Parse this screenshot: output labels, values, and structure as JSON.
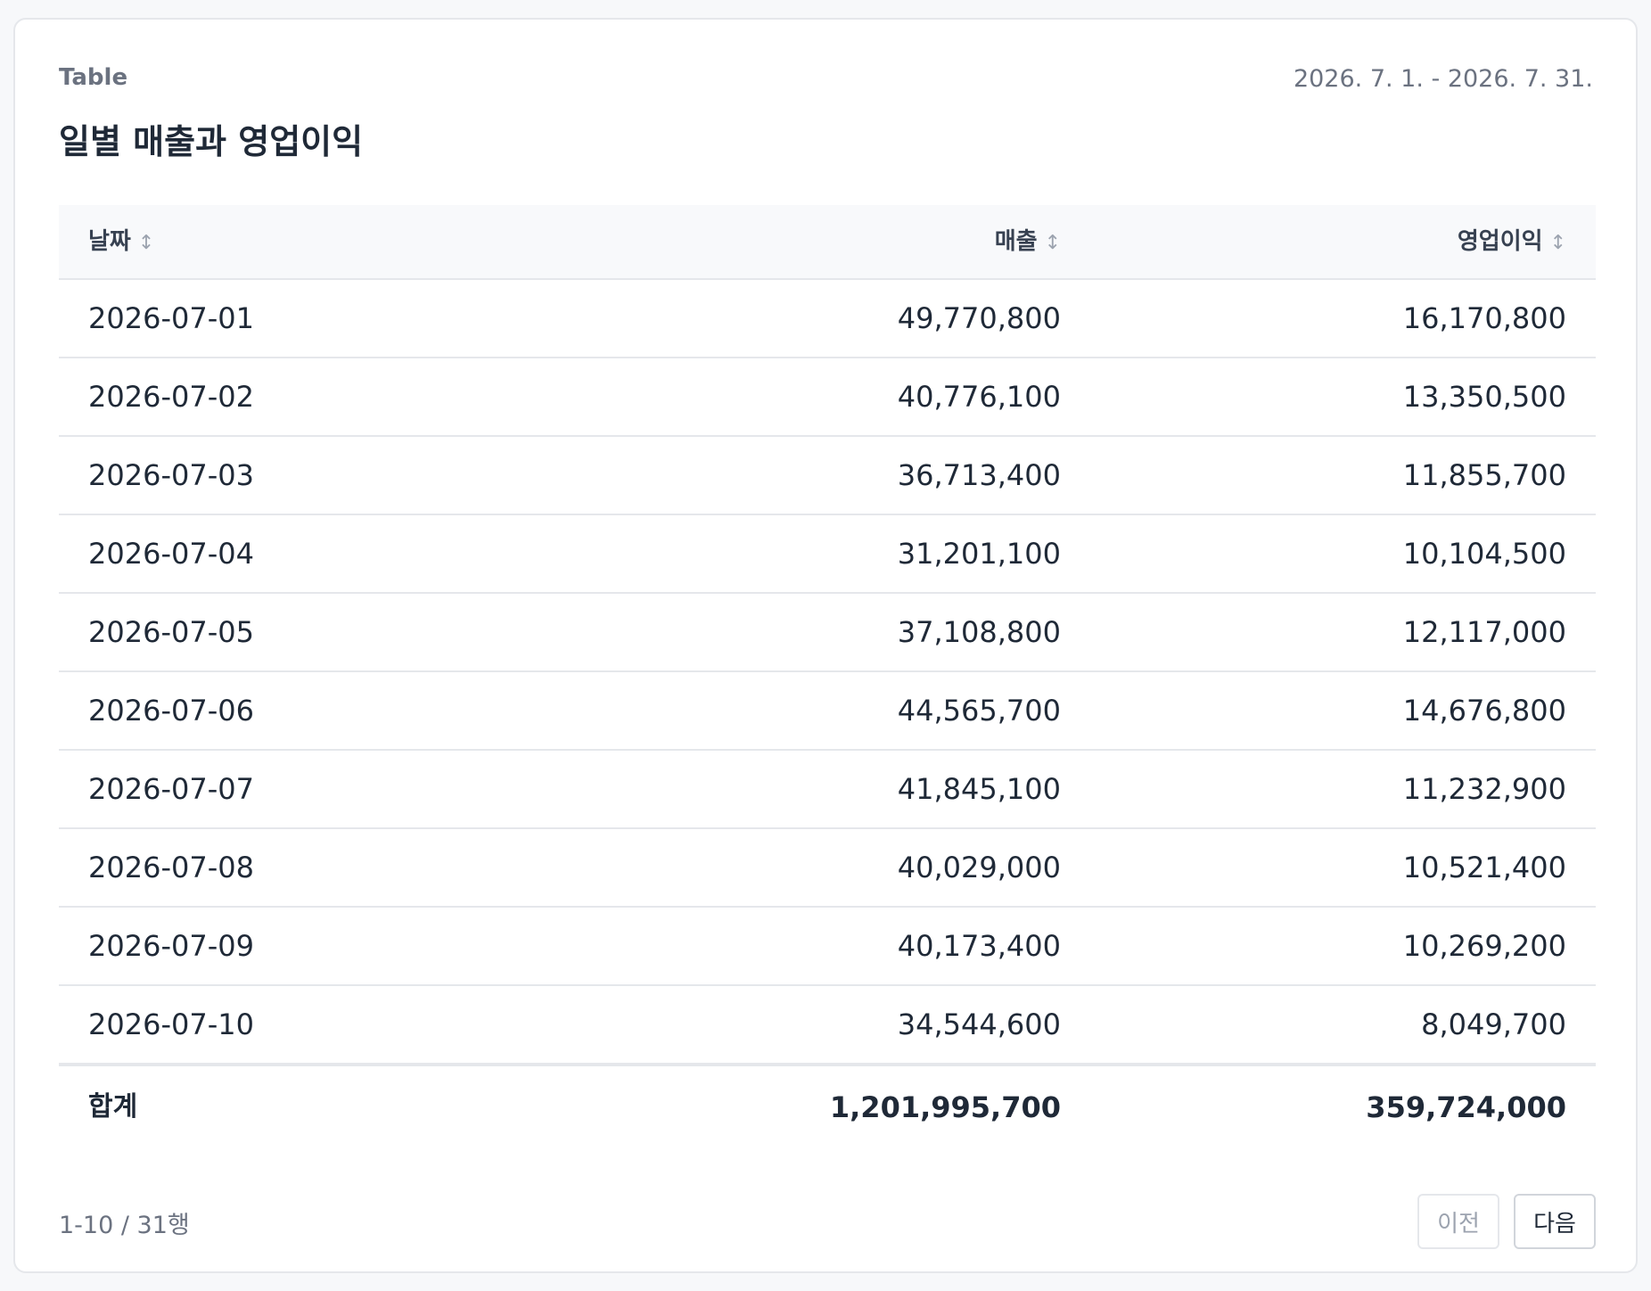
{
  "card": {
    "eyebrow": "Table",
    "date_range": "2026. 7. 1. - 2026. 7. 31.",
    "title": "일별 매출과 영업이익"
  },
  "table": {
    "columns": [
      {
        "label": "날짜",
        "sort_icon": "↕"
      },
      {
        "label": "매출",
        "sort_icon": "↕"
      },
      {
        "label": "영업이익",
        "sort_icon": "↕"
      }
    ],
    "rows": [
      {
        "date": "2026-07-01",
        "revenue": "49,770,800",
        "operating_profit": "16,170,800"
      },
      {
        "date": "2026-07-02",
        "revenue": "40,776,100",
        "operating_profit": "13,350,500"
      },
      {
        "date": "2026-07-03",
        "revenue": "36,713,400",
        "operating_profit": "11,855,700"
      },
      {
        "date": "2026-07-04",
        "revenue": "31,201,100",
        "operating_profit": "10,104,500"
      },
      {
        "date": "2026-07-05",
        "revenue": "37,108,800",
        "operating_profit": "12,117,000"
      },
      {
        "date": "2026-07-06",
        "revenue": "44,565,700",
        "operating_profit": "14,676,800"
      },
      {
        "date": "2026-07-07",
        "revenue": "41,845,100",
        "operating_profit": "11,232,900"
      },
      {
        "date": "2026-07-08",
        "revenue": "40,029,000",
        "operating_profit": "10,521,400"
      },
      {
        "date": "2026-07-09",
        "revenue": "40,173,400",
        "operating_profit": "10,269,200"
      },
      {
        "date": "2026-07-10",
        "revenue": "34,544,600",
        "operating_profit": "8,049,700"
      }
    ],
    "total": {
      "label": "합계",
      "revenue": "1,201,995,700",
      "operating_profit": "359,724,000"
    }
  },
  "pagination": {
    "count_text": "1-10 / 31행",
    "prev_label": "이전",
    "next_label": "다음"
  }
}
